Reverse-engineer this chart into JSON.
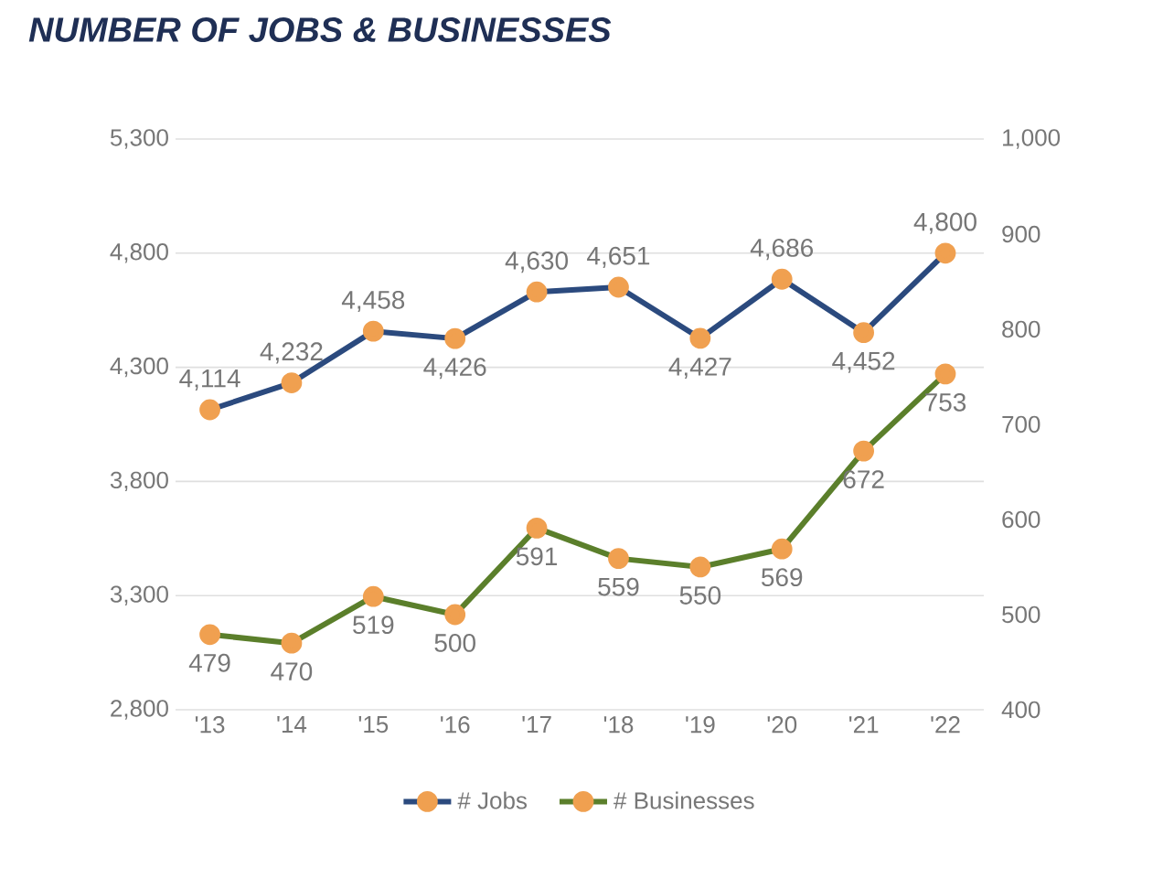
{
  "chart_data": {
    "type": "line",
    "title": "NUMBER OF JOBS & BUSINESSES",
    "categories": [
      "'13",
      "'14",
      "'15",
      "'16",
      "'17",
      "'18",
      "'19",
      "'20",
      "'21",
      "'22"
    ],
    "series": [
      {
        "name": "# Jobs",
        "color": "#2b4a7e",
        "values": [
          4114,
          4232,
          4458,
          4426,
          4630,
          4651,
          4427,
          4686,
          4452,
          4800
        ],
        "value_labels": [
          "4,114",
          "4,232",
          "4,458",
          "4,426",
          "4,630",
          "4,651",
          "4,427",
          "4,686",
          "4,452",
          "4,800"
        ]
      },
      {
        "name": "# Businesses",
        "color": "#5b7f2b",
        "axis": "y2",
        "values": [
          479,
          470,
          519,
          500,
          591,
          559,
          550,
          569,
          672,
          753
        ],
        "value_labels": [
          "479",
          "470",
          "519",
          "500",
          "591",
          "559",
          "550",
          "569",
          "672",
          "753"
        ]
      }
    ],
    "ylim": [
      2800,
      5300
    ],
    "yticks": [
      {
        "value": 2800,
        "label": "2,800"
      },
      {
        "value": 3300,
        "label": "3,300"
      },
      {
        "value": 3800,
        "label": "3,800"
      },
      {
        "value": 4300,
        "label": "4,300"
      },
      {
        "value": 4800,
        "label": "4,800"
      },
      {
        "value": 5300,
        "label": "5,300"
      }
    ],
    "y2lim": [
      400,
      1000
    ],
    "y2ticks": [
      400,
      500,
      600,
      700,
      800,
      900,
      {
        "value": 1000,
        "label": "1,000"
      }
    ],
    "grid": "y",
    "legend": "bottom",
    "marker": "circle",
    "line_style": "solid"
  }
}
